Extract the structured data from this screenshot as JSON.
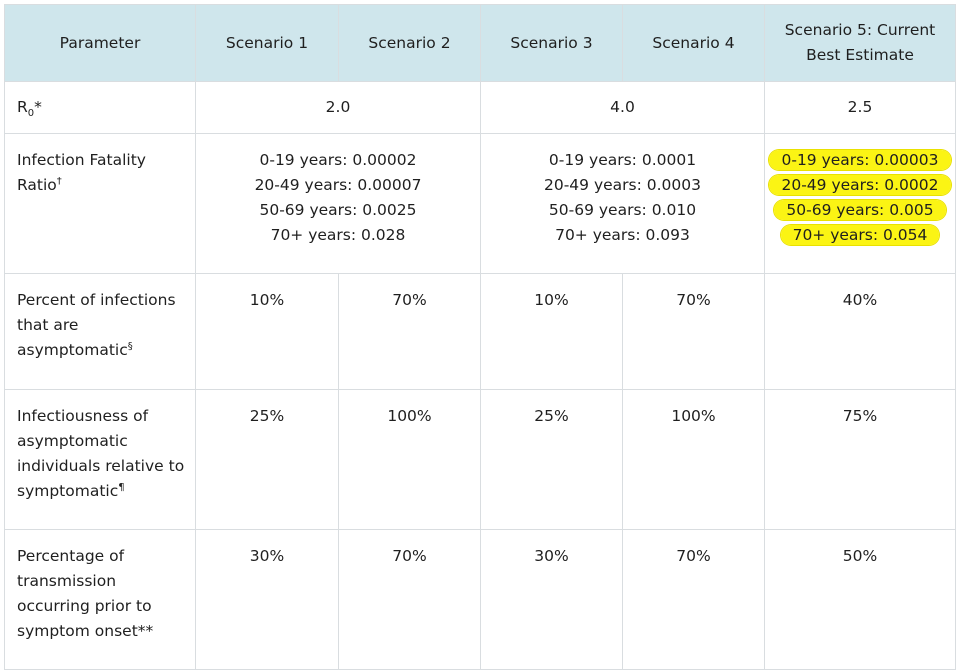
{
  "table": {
    "headers": {
      "parameter": "Parameter",
      "s1": "Scenario 1",
      "s2": "Scenario 2",
      "s3": "Scenario 3",
      "s4": "Scenario 4",
      "s5": "Scenario 5: Current Best Estimate"
    },
    "r0": {
      "label": "R",
      "label_sub": "0",
      "label_suffix": "*",
      "s12": "2.0",
      "s34": "4.0",
      "s5": "2.5"
    },
    "ifr": {
      "label": "Infection Fatality Ratio",
      "mark": "†",
      "s12": [
        "0-19 years: 0.00002",
        "20-49 years: 0.00007",
        "50-69 years: 0.0025",
        "70+ years: 0.028"
      ],
      "s34": [
        "0-19 years: 0.0001",
        "20-49 years: 0.0003",
        "50-69 years: 0.010",
        "70+ years: 0.093"
      ],
      "s5": [
        "0-19 years: 0.00003",
        "20-49 years: 0.0002",
        "50-69 years: 0.005",
        "70+ years: 0.054"
      ]
    },
    "asym": {
      "label": "Percent of infections that are asymptomatic",
      "mark": "§",
      "values": [
        "10%",
        "70%",
        "10%",
        "70%",
        "40%"
      ]
    },
    "infect": {
      "label": "Infectiousness of asymptomatic individuals relative to symptomatic",
      "mark": "¶",
      "values": [
        "25%",
        "100%",
        "25%",
        "100%",
        "75%"
      ]
    },
    "presym": {
      "label": "Percentage of transmission occurring prior to symptom onset**",
      "values": [
        "30%",
        "70%",
        "30%",
        "70%",
        "50%"
      ]
    }
  },
  "highlight_color": "#fbf414"
}
